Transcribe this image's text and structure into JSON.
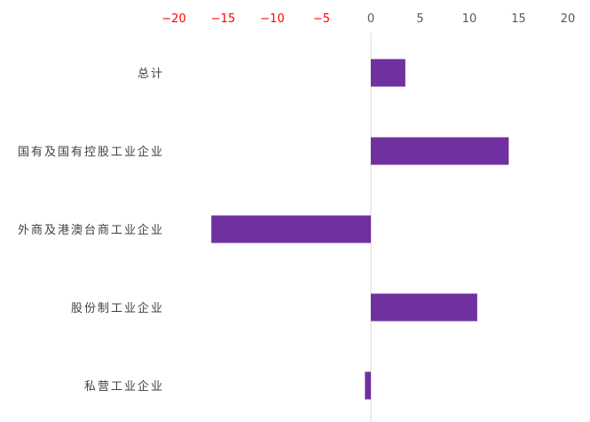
{
  "chart_data": {
    "type": "bar",
    "orientation": "horizontal",
    "title": "",
    "xlabel": "",
    "ylabel": "",
    "categories": [
      "总计",
      "国有及国有控股工业企业",
      "外商及港澳台商工业企业",
      "股份制工业企业",
      "私营工业企业"
    ],
    "values": [
      3.5,
      14.0,
      -16.2,
      10.8,
      -0.6
    ],
    "xlim": [
      -20,
      20
    ],
    "xticks": [
      "−20",
      "−15",
      "−10",
      "−5",
      "0",
      "5",
      "10",
      "15",
      "20"
    ],
    "xtick_values": [
      -20,
      -15,
      -10,
      -5,
      0,
      5,
      10,
      15,
      20
    ],
    "axis_position": "top",
    "grid": false,
    "legend": "none",
    "colors": {
      "bar": "#7030a0",
      "negative_tick": "#ff0000",
      "positive_tick": "#595959",
      "zero_line": "#d9d9d9",
      "category_text": "#404040"
    }
  }
}
